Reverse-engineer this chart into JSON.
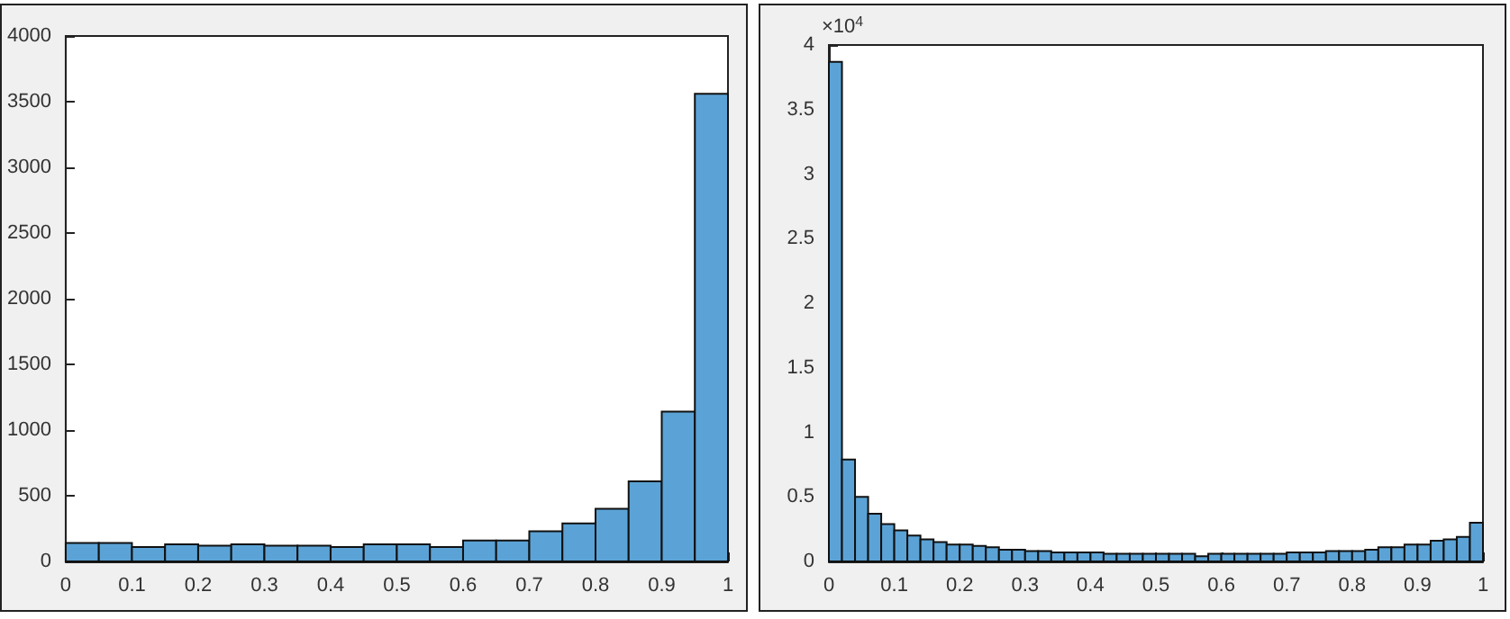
{
  "chart_data": [
    {
      "type": "histogram",
      "bins": [
        0,
        0.05,
        0.1,
        0.15,
        0.2,
        0.25,
        0.3,
        0.35,
        0.4,
        0.45,
        0.5,
        0.55,
        0.6,
        0.65,
        0.7,
        0.75,
        0.8,
        0.85,
        0.9,
        0.95,
        1
      ],
      "values": [
        140,
        140,
        110,
        130,
        120,
        130,
        120,
        120,
        110,
        130,
        130,
        110,
        160,
        160,
        230,
        290,
        400,
        610,
        1140,
        3560
      ],
      "color": "#5ba3d6",
      "xlim": [
        0,
        1
      ],
      "xticks": [
        0,
        0.1,
        0.2,
        0.3,
        0.4,
        0.5,
        0.6,
        0.7,
        0.8,
        0.9,
        1
      ],
      "ylim": [
        0,
        4000
      ],
      "yticks": [
        0,
        500,
        1000,
        1500,
        2000,
        2500,
        3000,
        3500,
        4000
      ],
      "grid": false
    },
    {
      "type": "histogram",
      "bins": [
        0,
        0.02,
        0.04,
        0.06,
        0.08,
        0.1,
        0.12,
        0.14,
        0.16,
        0.18,
        0.2,
        0.22,
        0.24,
        0.26,
        0.28,
        0.3,
        0.32,
        0.34,
        0.36,
        0.38,
        0.4,
        0.42,
        0.44,
        0.46,
        0.48,
        0.5,
        0.52,
        0.54,
        0.56,
        0.58,
        0.6,
        0.62,
        0.64,
        0.66,
        0.68,
        0.7,
        0.72,
        0.74,
        0.76,
        0.78,
        0.8,
        0.82,
        0.84,
        0.86,
        0.88,
        0.9,
        0.92,
        0.94,
        0.96,
        0.98,
        1
      ],
      "values": [
        3.87,
        0.79,
        0.5,
        0.37,
        0.29,
        0.24,
        0.2,
        0.17,
        0.15,
        0.13,
        0.13,
        0.12,
        0.11,
        0.09,
        0.09,
        0.08,
        0.08,
        0.07,
        0.07,
        0.07,
        0.07,
        0.06,
        0.06,
        0.06,
        0.06,
        0.06,
        0.06,
        0.06,
        0.04,
        0.06,
        0.06,
        0.06,
        0.06,
        0.06,
        0.06,
        0.07,
        0.07,
        0.07,
        0.08,
        0.08,
        0.08,
        0.09,
        0.11,
        0.11,
        0.13,
        0.13,
        0.16,
        0.17,
        0.19,
        0.3
      ],
      "color": "#5ba3d6",
      "xlim": [
        0,
        1
      ],
      "xticks": [
        0,
        0.1,
        0.2,
        0.3,
        0.4,
        0.5,
        0.6,
        0.7,
        0.8,
        0.9,
        1
      ],
      "ylim": [
        0,
        4
      ],
      "yticks": [
        0,
        0.5,
        1,
        1.5,
        2,
        2.5,
        3,
        3.5,
        4
      ],
      "grid": false,
      "annotations": [
        "×10$^{4}$"
      ]
    }
  ]
}
